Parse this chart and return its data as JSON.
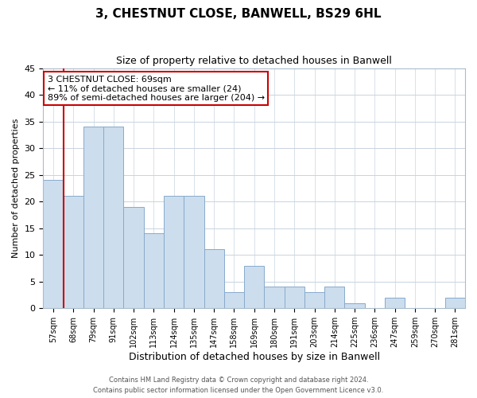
{
  "title": "3, CHESTNUT CLOSE, BANWELL, BS29 6HL",
  "subtitle": "Size of property relative to detached houses in Banwell",
  "xlabel": "Distribution of detached houses by size in Banwell",
  "ylabel": "Number of detached properties",
  "bar_labels": [
    "57sqm",
    "68sqm",
    "79sqm",
    "91sqm",
    "102sqm",
    "113sqm",
    "124sqm",
    "135sqm",
    "147sqm",
    "158sqm",
    "169sqm",
    "180sqm",
    "191sqm",
    "203sqm",
    "214sqm",
    "225sqm",
    "236sqm",
    "247sqm",
    "259sqm",
    "270sqm",
    "281sqm"
  ],
  "bar_values": [
    24,
    21,
    34,
    34,
    19,
    14,
    21,
    21,
    11,
    3,
    8,
    4,
    4,
    3,
    4,
    1,
    0,
    2,
    0,
    0,
    2
  ],
  "bar_color": "#ccdded",
  "bar_edge_color": "#88aacc",
  "reference_line_x": 1,
  "reference_line_color": "#cc0000",
  "ylim": [
    0,
    45
  ],
  "yticks": [
    0,
    5,
    10,
    15,
    20,
    25,
    30,
    35,
    40,
    45
  ],
  "annotation_text_line1": "3 CHESTNUT CLOSE: 69sqm",
  "annotation_text_line2": "← 11% of detached houses are smaller (24)",
  "annotation_text_line3": "89% of semi-detached houses are larger (204) →",
  "footer_line1": "Contains HM Land Registry data © Crown copyright and database right 2024.",
  "footer_line2": "Contains public sector information licensed under the Open Government Licence v3.0.",
  "bg_color": "#ffffff",
  "grid_color": "#c8d4e0",
  "title_fontsize": 11,
  "subtitle_fontsize": 9,
  "ylabel_fontsize": 8,
  "xlabel_fontsize": 9,
  "ytick_fontsize": 8,
  "xtick_fontsize": 7
}
